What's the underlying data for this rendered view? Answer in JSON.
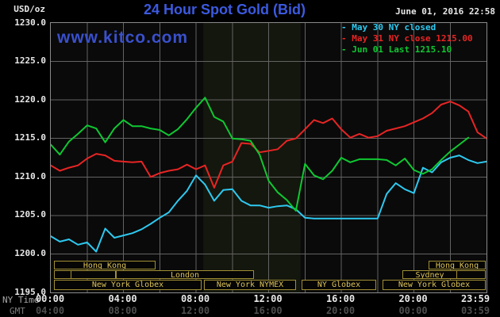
{
  "header": {
    "units_label": "USD/oz",
    "title": "24 Hour Spot Gold (Bid)",
    "datetime": "June 01, 2016 22:58",
    "watermark": "www.kitco.com"
  },
  "legend": [
    {
      "label": "- May 30 NY closed",
      "color": "#2ec9f0"
    },
    {
      "label": "- May 31 NY close 1215.00",
      "color": "#e82424"
    },
    {
      "label": "- Jun 01 Last 1215.10",
      "color": "#0fc832"
    }
  ],
  "axes": {
    "ny_time_label": "NY Time",
    "gmt_label": "GMT",
    "y_ticks": [
      "1230.0",
      "1225.0",
      "1220.0",
      "1215.0",
      "1210.0",
      "1205.0",
      "1200.0",
      "1195.0"
    ],
    "y_max": 1230,
    "y_min": 1195,
    "x_ticks_ny": [
      "00:00",
      "04:00",
      "08:00",
      "12:00",
      "16:00",
      "20:00",
      "23:59"
    ],
    "x_ticks_gmt": [
      "04:00",
      "08:00",
      "12:00",
      "16:00",
      "20:00",
      "00:00",
      "03:59"
    ]
  },
  "sessions": [
    {
      "row": 0,
      "start_h": 0.2,
      "end_h": 5.8,
      "label": "Hong Kong"
    },
    {
      "row": 0,
      "start_h": 20.85,
      "end_h": 24.0,
      "label": "Hong Kong"
    },
    {
      "row": 1,
      "start_h": 0.2,
      "end_h": 1.15,
      "label": ""
    },
    {
      "row": 1,
      "start_h": 1.15,
      "end_h": 3.65,
      "label": ""
    },
    {
      "row": 1,
      "start_h": 3.65,
      "end_h": 11.25,
      "label": "London"
    },
    {
      "row": 1,
      "start_h": 19.4,
      "end_h": 22.4,
      "label": "Sydney"
    },
    {
      "row": 1,
      "start_h": 22.4,
      "end_h": 24.0,
      "label": ""
    },
    {
      "row": 2,
      "start_h": 0.2,
      "end_h": 8.35,
      "label": "New York Globex"
    },
    {
      "row": 2,
      "start_h": 8.5,
      "end_h": 13.55,
      "label": "New York NYMEX"
    },
    {
      "row": 2,
      "start_h": 13.85,
      "end_h": 17.95,
      "label": "NY Globex"
    },
    {
      "row": 2,
      "start_h": 18.3,
      "end_h": 24.0,
      "label": "New York Globex"
    }
  ],
  "chart_data": {
    "type": "line",
    "title": "24 Hour Spot Gold (Bid)",
    "ylabel": "USD/oz",
    "ylim": [
      1195,
      1230
    ],
    "x_hours_total": 24,
    "grid": true,
    "x_grid_step_h": 2,
    "y_grid_step": 5,
    "nymex_floor_band_h": [
      8.4,
      13.75
    ],
    "series": [
      {
        "name": "May 30",
        "color": "#2ec9f0",
        "x_start_h": 0,
        "x_step_h": 0.5,
        "values": [
          1202.3,
          1201.6,
          1201.9,
          1201.2,
          1201.5,
          1200.3,
          1203.3,
          1202.1,
          1202.4,
          1202.7,
          1203.2,
          1203.9,
          1204.7,
          1205.4,
          1206.9,
          1208.2,
          1210.2,
          1209.0,
          1206.9,
          1208.3,
          1208.4,
          1206.9,
          1206.3,
          1206.3,
          1206.0,
          1206.2,
          1206.3,
          1205.8,
          1204.7,
          1204.6,
          1204.6,
          1204.6,
          1204.6,
          1204.6,
          1204.6,
          1204.6,
          1204.6,
          1207.8,
          1209.2,
          1208.4,
          1207.9,
          1211.2,
          1210.6,
          1211.9,
          1212.5,
          1212.8,
          1212.2,
          1211.8,
          1212.0
        ]
      },
      {
        "name": "May 31",
        "color": "#e82424",
        "x_start_h": 0,
        "x_step_h": 0.5,
        "values": [
          1211.5,
          1210.8,
          1211.2,
          1211.5,
          1212.4,
          1213.0,
          1212.8,
          1212.1,
          1212.0,
          1211.9,
          1212.0,
          1210.0,
          1210.5,
          1210.8,
          1211.0,
          1211.6,
          1211.0,
          1211.5,
          1208.6,
          1211.5,
          1212.0,
          1214.4,
          1214.3,
          1213.2,
          1213.4,
          1213.6,
          1214.7,
          1215.0,
          1216.2,
          1217.4,
          1217.0,
          1217.6,
          1216.2,
          1215.1,
          1215.6,
          1215.1,
          1215.3,
          1216.0,
          1216.3,
          1216.6,
          1217.1,
          1217.6,
          1218.3,
          1219.4,
          1219.8,
          1219.3,
          1218.5,
          1215.8,
          1215.0
        ]
      },
      {
        "name": "Jun 01",
        "color": "#0fc832",
        "x_start_h": 0,
        "x_step_h": 0.5,
        "values": [
          1214.2,
          1212.9,
          1214.6,
          1215.6,
          1216.7,
          1216.3,
          1214.5,
          1216.3,
          1217.4,
          1216.6,
          1216.6,
          1216.3,
          1216.1,
          1215.4,
          1216.2,
          1217.5,
          1219.0,
          1220.3,
          1217.8,
          1217.2,
          1215.0,
          1214.9,
          1214.7,
          1212.9,
          1209.5,
          1208.0,
          1207.0,
          1205.6,
          1211.7,
          1210.2,
          1209.7,
          1210.8,
          1212.5,
          1211.9,
          1212.3,
          1212.3,
          1212.3,
          1212.2,
          1211.5,
          1212.4,
          1210.9,
          1210.4,
          1211.0,
          1212.2,
          1213.3,
          1214.2,
          1215.1
        ]
      }
    ]
  }
}
